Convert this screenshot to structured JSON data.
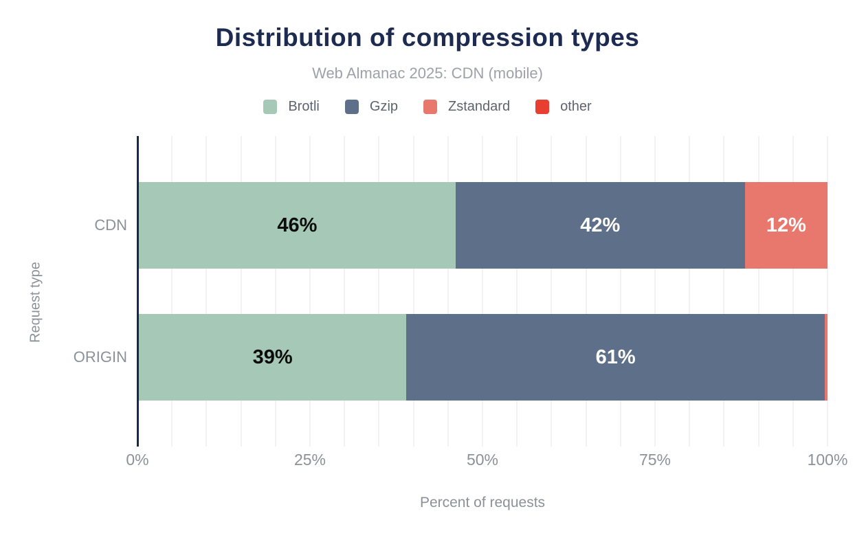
{
  "chart_data": {
    "type": "bar",
    "orientation": "horizontal",
    "stacked": true,
    "title": "Distribution of compression types",
    "subtitle": "Web Almanac 2025: CDN (mobile)",
    "xlabel": "Percent of requests",
    "ylabel": "Request type",
    "categories": [
      "CDN",
      "ORIGIN"
    ],
    "series": [
      {
        "name": "Brotli",
        "color": "#a5c9b6",
        "label_color": "#0c0c0c",
        "values": [
          46,
          39
        ],
        "labels": [
          "46%",
          "39%"
        ]
      },
      {
        "name": "Gzip",
        "color": "#5e7089",
        "label_color": "#ffffff",
        "values": [
          42,
          61
        ],
        "labels": [
          "42%",
          "61%"
        ]
      },
      {
        "name": "Zstandard",
        "color": "#e8786e",
        "label_color": "#ffffff",
        "values": [
          12,
          0.4
        ],
        "labels": [
          "12%",
          ""
        ]
      },
      {
        "name": "other",
        "color": "#e83f30",
        "label_color": "#ffffff",
        "values": [
          0,
          0
        ],
        "labels": [
          "",
          ""
        ]
      }
    ],
    "xlim": [
      0,
      100
    ],
    "x_ticks": [
      "0%",
      "25%",
      "50%",
      "75%",
      "100%"
    ],
    "grid": "vertical gridlines every 5%",
    "legend_position": "top",
    "theme_colors": {
      "title": "#1e2b50",
      "subtitle_text": "#9da1a8",
      "axis_text": "#8b9198",
      "legend_text": "#5c636e",
      "axis_line": "#16294c",
      "gridline": "#f2f2f2",
      "background": "#ffffff"
    }
  }
}
